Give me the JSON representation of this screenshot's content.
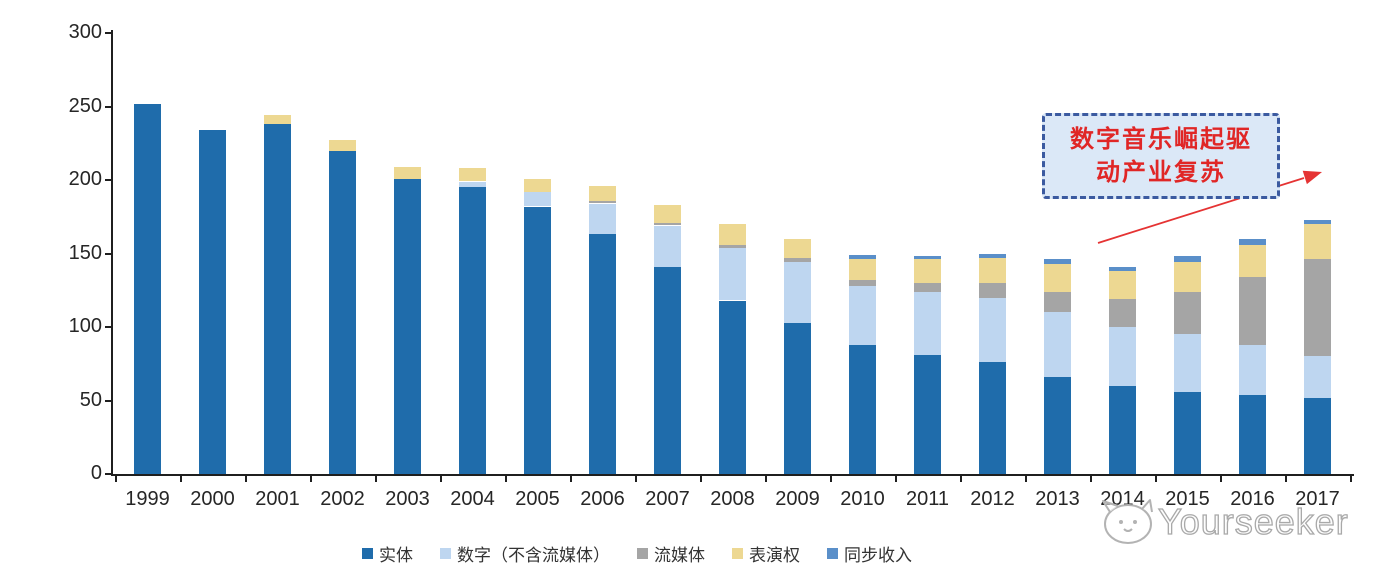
{
  "chart_data": {
    "type": "bar",
    "stacked": true,
    "title": "",
    "xlabel": "",
    "ylabel": "",
    "categories": [
      "1999",
      "2000",
      "2001",
      "2002",
      "2003",
      "2004",
      "2005",
      "2006",
      "2007",
      "2008",
      "2009",
      "2010",
      "2011",
      "2012",
      "2013",
      "2014",
      "2015",
      "2016",
      "2017"
    ],
    "series": [
      {
        "key": "physical",
        "name": "实体",
        "color": "#1f6cab",
        "values": [
          252,
          234,
          238,
          220,
          201,
          195,
          182,
          163,
          141,
          118,
          103,
          88,
          81,
          76,
          66,
          60,
          56,
          54,
          52
        ]
      },
      {
        "key": "digital",
        "name": "数字（不含流媒体）",
        "color": "#bed6f0",
        "values": [
          0,
          0,
          0,
          0,
          0,
          4,
          10,
          21,
          28,
          36,
          41,
          40,
          43,
          44,
          44,
          40,
          39,
          34,
          28
        ]
      },
      {
        "key": "streaming",
        "name": "流媒体",
        "color": "#a5a5a5",
        "values": [
          0,
          0,
          0,
          0,
          0,
          0,
          0,
          2,
          2,
          2,
          3,
          4,
          6,
          10,
          14,
          19,
          29,
          46,
          66
        ]
      },
      {
        "key": "performance",
        "name": "表演权",
        "color": "#edd892",
        "values": [
          0,
          0,
          6,
          7,
          8,
          9,
          9,
          10,
          12,
          14,
          13,
          14,
          16,
          17,
          19,
          19,
          20,
          22,
          24
        ]
      },
      {
        "key": "sync",
        "name": "同步收入",
        "color": "#5a8fc9",
        "values": [
          0,
          0,
          0,
          0,
          0,
          0,
          0,
          0,
          0,
          0,
          0,
          3,
          2,
          3,
          3,
          3,
          4,
          4,
          3
        ]
      }
    ],
    "ylim": [
      0,
      300
    ],
    "yticks": [
      0,
      50,
      100,
      150,
      200,
      250,
      300
    ],
    "grid": false,
    "legend_position": "bottom"
  },
  "annotation": {
    "line1": "数字音乐崛起驱",
    "line2": "动产业复苏",
    "fill": "#dbe8f7",
    "border": "#3b5aa0",
    "text_color": "#e02626",
    "arrow_color": "#e53333"
  },
  "watermark": {
    "text": "Yourseeker",
    "logo": "cat-face-icon",
    "color": "#a9a9a9"
  }
}
